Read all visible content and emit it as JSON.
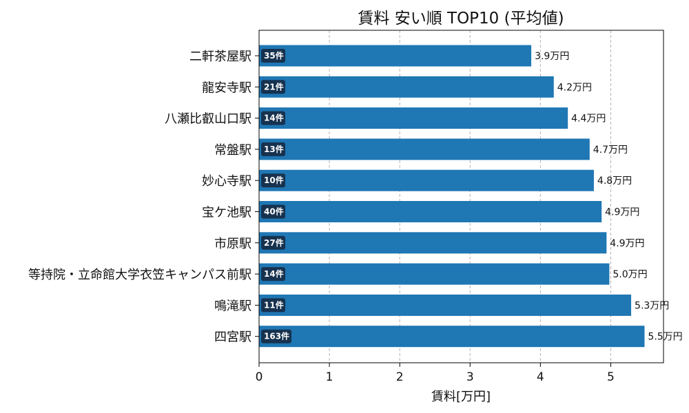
{
  "chart_data": {
    "type": "bar",
    "orientation": "horizontal",
    "title": "賃料 安い順 TOP10 (平均値)",
    "xlabel": "賃料[万円]",
    "ylabel": "",
    "xlim": [
      0,
      5.75
    ],
    "xticks": [
      0,
      1,
      2,
      3,
      4,
      5
    ],
    "grid": "x-dashed",
    "bar_color": "#1f77b4",
    "badge_color": "#16324f",
    "categories": [
      "二軒茶屋駅",
      "龍安寺駅",
      "八瀬比叡山口駅",
      "常盤駅",
      "妙心寺駅",
      "宝ケ池駅",
      "市原駅",
      "等持院・立命館大学衣笠キャンパス前駅",
      "鳴滝駅",
      "四宮駅"
    ],
    "values": [
      3.87,
      4.19,
      4.39,
      4.7,
      4.76,
      4.87,
      4.94,
      4.98,
      5.29,
      5.48
    ],
    "value_labels": [
      "3.9万円",
      "4.2万円",
      "4.4万円",
      "4.7万円",
      "4.8万円",
      "4.9万円",
      "4.9万円",
      "5.0万円",
      "5.3万円",
      "5.5万円"
    ],
    "count_labels": [
      "35件",
      "21件",
      "14件",
      "13件",
      "10件",
      "40件",
      "27件",
      "14件",
      "11件",
      "163件"
    ]
  }
}
